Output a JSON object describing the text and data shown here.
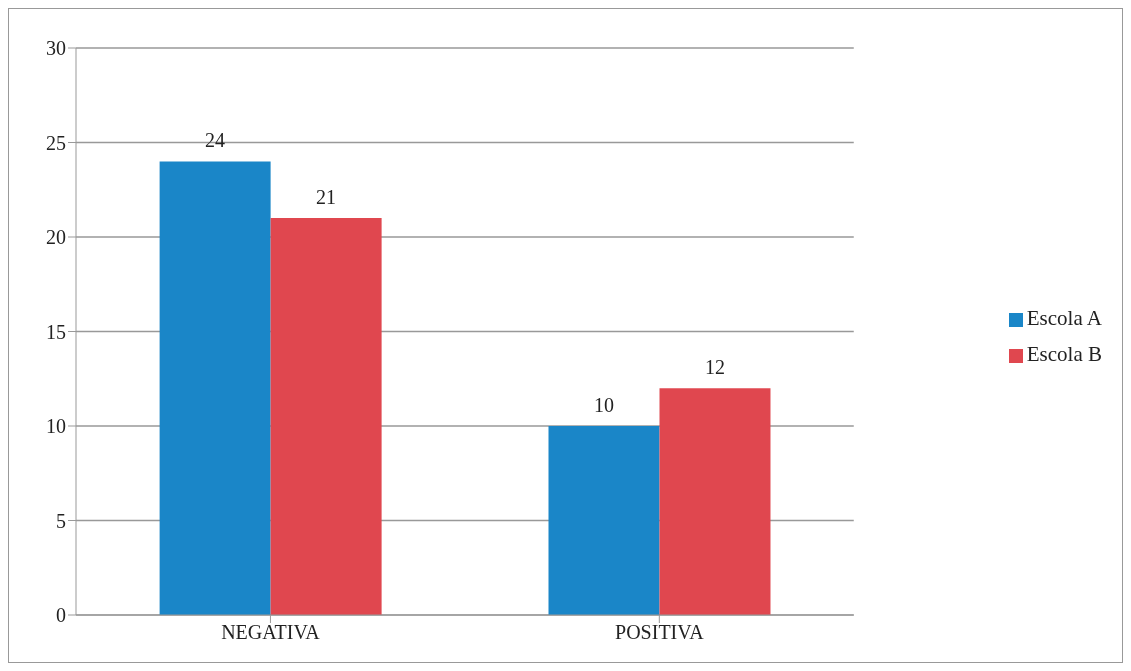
{
  "chart_data": {
    "type": "bar",
    "categories": [
      "NEGATIVA",
      "POSITIVA"
    ],
    "series": [
      {
        "name": "Escola A",
        "color": "#1a86c8",
        "values": [
          24,
          10
        ]
      },
      {
        "name": "Escola B",
        "color": "#e0474f",
        "values": [
          21,
          12
        ]
      }
    ],
    "ylim": [
      0,
      30
    ],
    "yticks": [
      0,
      5,
      10,
      15,
      20,
      25,
      30
    ],
    "grid": "y",
    "legend": "right",
    "data_labels": true
  }
}
